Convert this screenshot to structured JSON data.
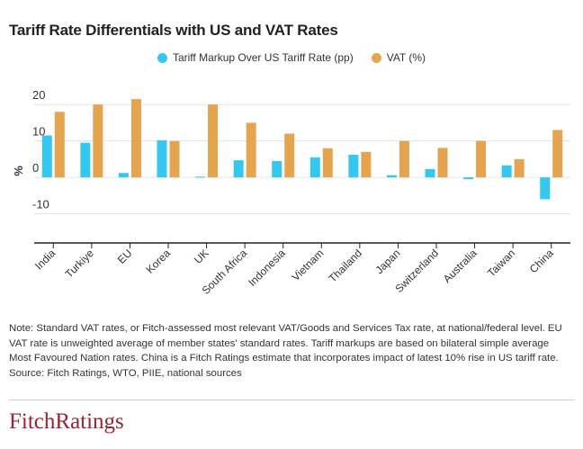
{
  "title": "Tariff Rate Differentials with US and VAT Rates",
  "colors": {
    "tariff": "#35c7f0",
    "vat": "#e5a450",
    "axis": "#222222",
    "grid": "#e3e3e3",
    "brand": "#9b2335"
  },
  "chart_data": {
    "type": "bar",
    "title": "Tariff Rate Differentials with US and VAT Rates",
    "xlabel": "",
    "ylabel": "%",
    "ylim": [
      -18,
      24
    ],
    "yticks": [
      -10,
      0,
      10,
      20
    ],
    "ytick_labels": [
      "-10",
      "0",
      "10",
      "20"
    ],
    "grid": true,
    "legend_position": "top-center",
    "categories": [
      "India",
      "Turkiye",
      "EU",
      "Korea",
      "UK",
      "South Africa",
      "Indonesia",
      "Vietnam",
      "Thailand",
      "Japan",
      "Switzerland",
      "Australia",
      "Taiwan",
      "China"
    ],
    "series": [
      {
        "name": "Tariff Markup Over US Tariff Rate (pp)",
        "color": "#35c7f0",
        "values": [
          11.5,
          9.5,
          1.2,
          10.2,
          0.2,
          4.7,
          4.5,
          5.5,
          6.2,
          0.6,
          2.3,
          -0.5,
          3.3,
          -6.0
        ]
      },
      {
        "name": "VAT (%)",
        "color": "#e5a450",
        "values": [
          18,
          20,
          21.5,
          10,
          20,
          15,
          12,
          8,
          7,
          10,
          8.1,
          10,
          5,
          13
        ]
      }
    ]
  },
  "note": {
    "text": "Note: Standard VAT rates, or Fitch-assessed most relevant VAT/Goods and Services Tax rate, at national/federal level. EU VAT rate is unweighted average of member states' standard rates. Tariff markups are based on bilateral simple average Most Favoured Nation rates. China is a Fitch Ratings estimate that incorporates impact of latest 10% rise in US tariff rate.",
    "source": "Source: Fitch Ratings, WTO, PIIE, national sources"
  },
  "logo": {
    "text": "FitchRatings",
    "icon": "fitch-ratings-logo"
  }
}
